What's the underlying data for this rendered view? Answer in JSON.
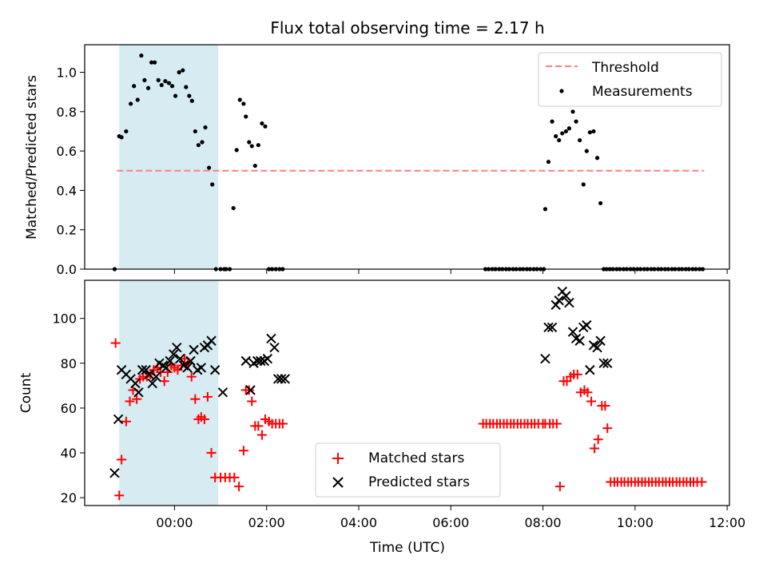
{
  "figure": {
    "title": "Flux total observing time = 2.17 h",
    "xlabel": "Time (UTC)",
    "x_tick_labels": [
      "00:00",
      "02:00",
      "04:00",
      "06:00",
      "08:00",
      "10:00",
      "12:00"
    ],
    "highlight_color": "#add8e6"
  },
  "chart_data": [
    {
      "type": "scatter",
      "title": "Flux total observing time = 2.17 h",
      "xlabel": "",
      "ylabel": "Matched/Predicted stars",
      "x_unit": "hours UTC (0 = 00:00)",
      "xlim": [
        -1.95,
        12.05
      ],
      "ylim": [
        0,
        1.14
      ],
      "yticks": [
        0.0,
        0.2,
        0.4,
        0.6,
        0.8,
        1.0
      ],
      "ytick_labels": [
        "0.0",
        "0.2",
        "0.4",
        "0.6",
        "0.8",
        "1.0"
      ],
      "highlight_span": [
        -1.2,
        0.95
      ],
      "legend": {
        "position": "top-right",
        "entries": [
          "Threshold",
          "Measurements"
        ]
      },
      "series": [
        {
          "name": "Threshold",
          "kind": "dashed-line",
          "color": "#ff7f7f",
          "x": [
            -1.25,
            11.5
          ],
          "y": [
            0.5,
            0.5
          ]
        },
        {
          "name": "Measurements",
          "kind": "dots",
          "color": "#000000",
          "x": [
            -1.3,
            -1.2,
            -1.15,
            -1.05,
            -0.95,
            -0.88,
            -0.8,
            -0.72,
            -0.65,
            -0.57,
            -0.5,
            -0.43,
            -0.35,
            -0.28,
            -0.2,
            -0.12,
            -0.05,
            0.02,
            0.1,
            0.18,
            0.25,
            0.32,
            0.38,
            0.45,
            0.52,
            0.6,
            0.67,
            0.75,
            0.82,
            0.9,
            1.0,
            1.08,
            1.12,
            1.2,
            1.28,
            1.35,
            1.42,
            1.5,
            1.55,
            1.62,
            1.68,
            1.75,
            1.82,
            1.9,
            1.97,
            2.05,
            2.12,
            2.2,
            2.28,
            2.35,
            6.75,
            6.82,
            6.9,
            6.97,
            7.05,
            7.12,
            7.2,
            7.27,
            7.35,
            7.42,
            7.5,
            7.57,
            7.65,
            7.72,
            7.8,
            7.87,
            7.95,
            8.02,
            8.05,
            8.12,
            8.2,
            8.28,
            8.35,
            8.42,
            8.5,
            8.57,
            8.65,
            8.72,
            8.8,
            8.88,
            8.95,
            9.02,
            9.1,
            9.18,
            9.25,
            9.32,
            9.38,
            9.45,
            9.52,
            9.6,
            9.67,
            9.75,
            9.82,
            9.9,
            9.97,
            10.05,
            10.12,
            10.2,
            10.27,
            10.35,
            10.42,
            10.5,
            10.57,
            10.65,
            10.72,
            10.8,
            10.87,
            10.95,
            11.02,
            11.1,
            11.17,
            11.25,
            11.32,
            11.4,
            11.47
          ],
          "y": [
            0.0,
            0.675,
            0.67,
            0.7,
            0.84,
            0.93,
            0.86,
            1.085,
            0.96,
            0.92,
            1.05,
            1.05,
            0.96,
            0.935,
            0.955,
            0.945,
            0.93,
            0.88,
            1.0,
            1.01,
            0.925,
            0.88,
            0.855,
            0.7,
            0.63,
            0.645,
            0.72,
            0.515,
            0.43,
            0.0,
            0.0,
            0.0,
            0.0,
            0.0,
            0.31,
            0.605,
            0.86,
            0.84,
            0.775,
            0.645,
            0.625,
            0.525,
            0.63,
            0.74,
            0.725,
            0.0,
            0.0,
            0.0,
            0.0,
            0.0,
            0.0,
            0.0,
            0.0,
            0.0,
            0.0,
            0.0,
            0.0,
            0.0,
            0.0,
            0.0,
            0.0,
            0.0,
            0.0,
            0.0,
            0.0,
            0.0,
            0.0,
            0.0,
            0.305,
            0.545,
            0.75,
            0.675,
            0.655,
            0.69,
            0.7,
            0.715,
            0.8,
            0.75,
            0.655,
            0.43,
            0.6,
            0.695,
            0.7,
            0.565,
            0.335,
            0.0,
            0.0,
            0.0,
            0.0,
            0.0,
            0.0,
            0.0,
            0.0,
            0.0,
            0.0,
            0.0,
            0.0,
            0.0,
            0.0,
            0.0,
            0.0,
            0.0,
            0.0,
            0.0,
            0.0,
            0.0,
            0.0,
            0.0,
            0.0,
            0.0,
            0.0,
            0.0,
            0.0,
            0.0,
            0.0
          ]
        }
      ]
    },
    {
      "type": "scatter",
      "title": "",
      "xlabel": "Time (UTC)",
      "ylabel": "Count",
      "x_unit": "hours UTC (0 = 00:00)",
      "xlim": [
        -1.95,
        12.05
      ],
      "ylim": [
        16.5,
        117
      ],
      "yticks": [
        20,
        40,
        60,
        80,
        100
      ],
      "ytick_labels": [
        "20",
        "40",
        "60",
        "80",
        "100"
      ],
      "xtick_labels": [
        "00:00",
        "02:00",
        "04:00",
        "06:00",
        "08:00",
        "10:00",
        "12:00"
      ],
      "highlight_span": [
        -1.2,
        0.95
      ],
      "legend": {
        "position": "lower-center",
        "entries": [
          "Matched stars",
          "Predicted stars"
        ]
      },
      "series": [
        {
          "name": "Matched stars",
          "marker": "plus",
          "color": "#ff0000",
          "x": [
            -1.28,
            -1.2,
            -1.15,
            -1.05,
            -0.97,
            -0.9,
            -0.82,
            -0.75,
            -0.68,
            -0.6,
            -0.52,
            -0.45,
            -0.37,
            -0.3,
            -0.22,
            -0.15,
            -0.07,
            0.0,
            0.07,
            0.15,
            0.22,
            0.3,
            0.37,
            0.45,
            0.52,
            0.58,
            0.65,
            0.72,
            0.8,
            0.88,
            1.0,
            1.1,
            1.2,
            1.3,
            1.4,
            1.5,
            1.55,
            1.62,
            1.68,
            1.75,
            1.82,
            1.9,
            1.97,
            2.05,
            2.12,
            2.2,
            2.28,
            2.35,
            6.7,
            6.77,
            6.85,
            6.92,
            7.0,
            7.07,
            7.15,
            7.22,
            7.3,
            7.37,
            7.45,
            7.52,
            7.6,
            7.67,
            7.75,
            7.82,
            7.9,
            8.0,
            8.05,
            8.15,
            8.22,
            8.3,
            8.37,
            8.45,
            8.52,
            8.6,
            8.67,
            8.75,
            8.82,
            8.9,
            8.97,
            9.05,
            9.12,
            9.2,
            9.28,
            9.35,
            9.4,
            9.47,
            9.55,
            9.62,
            9.7,
            9.77,
            9.85,
            9.92,
            10.0,
            10.07,
            10.15,
            10.22,
            10.3,
            10.37,
            10.45,
            10.52,
            10.6,
            10.67,
            10.75,
            10.82,
            10.9,
            10.97,
            11.05,
            11.12,
            11.2,
            11.27,
            11.35,
            11.45
          ],
          "y": [
            89,
            21,
            37,
            54,
            63,
            68,
            64,
            73,
            74,
            74,
            75,
            77,
            78,
            76,
            72,
            76,
            79,
            78,
            77,
            79,
            82,
            80,
            74,
            64,
            55,
            56,
            55,
            65,
            40,
            29,
            29,
            29,
            29,
            29,
            25,
            41,
            68,
            68,
            63,
            52,
            52,
            48,
            55,
            54,
            53,
            53,
            53,
            53,
            53,
            53,
            53,
            53,
            53,
            53,
            53,
            53,
            53,
            53,
            53,
            53,
            53,
            53,
            53,
            53,
            53,
            53,
            53,
            53,
            53,
            53,
            25,
            72,
            72,
            74,
            75,
            75,
            67,
            68,
            67,
            63,
            42,
            46,
            61,
            61,
            51,
            27,
            27,
            27,
            27,
            27,
            27,
            27,
            27,
            27,
            27,
            27,
            27,
            27,
            27,
            27,
            27,
            27,
            27,
            27,
            27,
            27,
            27,
            27,
            27,
            27,
            27,
            27
          ]
        },
        {
          "name": "Predicted stars",
          "marker": "x",
          "color": "#000000",
          "x": [
            -1.3,
            -1.22,
            -1.15,
            -1.05,
            -0.95,
            -0.85,
            -0.78,
            -0.7,
            -0.62,
            -0.55,
            -0.48,
            -0.4,
            -0.33,
            -0.25,
            -0.18,
            -0.1,
            -0.02,
            0.05,
            0.12,
            0.2,
            0.28,
            0.35,
            0.42,
            0.5,
            0.58,
            0.65,
            0.72,
            0.8,
            0.88,
            1.05,
            1.55,
            1.65,
            1.72,
            1.8,
            1.87,
            1.95,
            2.02,
            2.1,
            2.17,
            2.25,
            2.32,
            2.4,
            8.05,
            8.12,
            8.2,
            8.28,
            8.35,
            8.42,
            8.5,
            8.57,
            8.65,
            8.72,
            8.8,
            8.88,
            8.95,
            9.02,
            9.1,
            9.18,
            9.25,
            9.32,
            9.4
          ],
          "y": [
            31,
            55,
            77,
            75,
            73,
            71,
            67,
            77,
            77,
            75,
            71,
            74,
            80,
            79,
            78,
            81,
            84,
            87,
            82,
            79,
            78,
            81,
            86,
            77,
            78,
            87,
            88,
            90,
            77,
            67,
            81,
            68,
            80,
            81,
            81,
            81,
            82,
            91,
            87,
            73,
            73,
            73,
            82,
            96,
            96,
            106,
            108,
            112,
            110,
            107,
            94,
            91,
            90,
            96,
            97,
            77,
            88,
            87,
            90,
            80,
            80
          ]
        }
      ]
    }
  ]
}
